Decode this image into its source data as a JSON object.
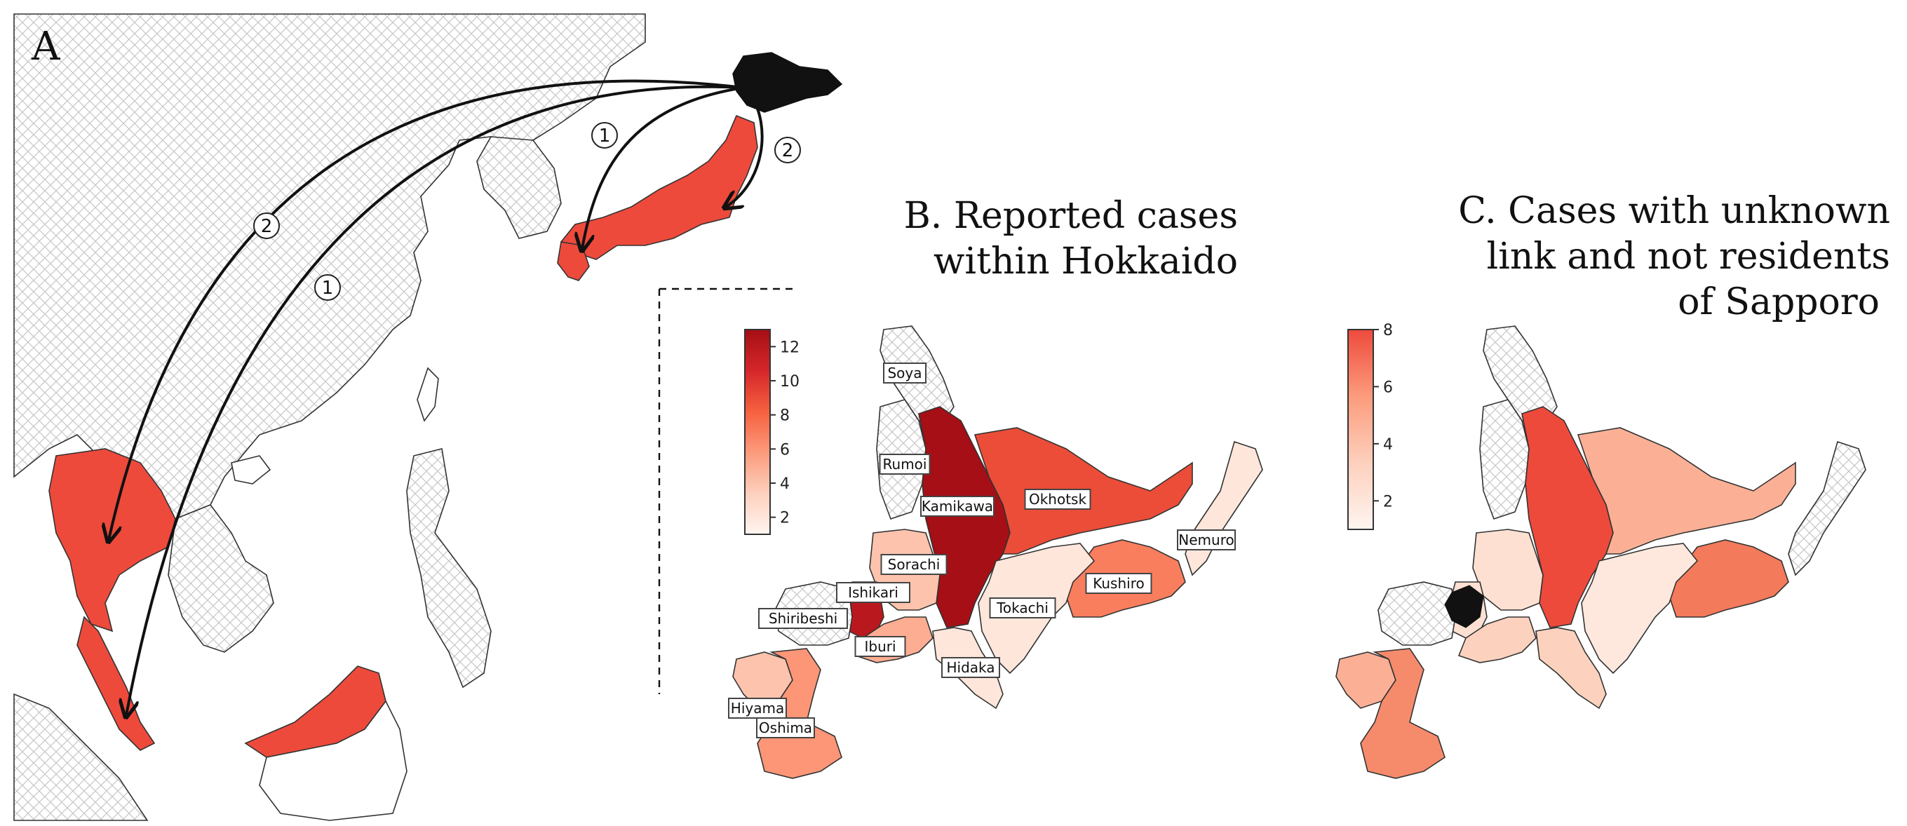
{
  "colors": {
    "accent": "#ee4a3c",
    "dark_red": "#b9161e",
    "hatch_line": "#c9c9c9",
    "sapporo_black": "#111111"
  },
  "panel_a": {
    "letter": "A",
    "route_labels": [
      {
        "id": "r1_upper",
        "text": "1"
      },
      {
        "id": "r2_upper",
        "text": "2"
      },
      {
        "id": "r2_left",
        "text": "2"
      },
      {
        "id": "r1_left",
        "text": "1"
      }
    ]
  },
  "panel_b": {
    "title_line1": "B. Reported cases",
    "title_line2": "within Hokkaido",
    "colorbar": {
      "min": 1,
      "max": 13,
      "ticks": [
        "12",
        "10",
        "8",
        "6",
        "4",
        "2"
      ],
      "tick_values": [
        12,
        10,
        8,
        6,
        4,
        2
      ],
      "low_color": "#fff5f0",
      "high_color": "#a50f15"
    },
    "regions": [
      {
        "name": "Soya",
        "cases": 1
      },
      {
        "name": "Rumoi",
        "cases": 1
      },
      {
        "name": "Kamikawa",
        "cases": 13
      },
      {
        "name": "Okhotsk",
        "cases": 9
      },
      {
        "name": "Nemuro",
        "cases": 2
      },
      {
        "name": "Sorachi",
        "cases": 4
      },
      {
        "name": "Ishikari",
        "cases": 12
      },
      {
        "name": "Shiribeshi",
        "cases": 1
      },
      {
        "name": "Kushiro",
        "cases": 7
      },
      {
        "name": "Tokachi",
        "cases": 2
      },
      {
        "name": "Iburi",
        "cases": 5
      },
      {
        "name": "Hidaka",
        "cases": 2
      },
      {
        "name": "Hiyama",
        "cases": 4
      },
      {
        "name": "Oshima",
        "cases": 6
      }
    ]
  },
  "panel_c": {
    "title_line1": "C. Cases with unknown",
    "title_line2": "link and not residents",
    "title_line3": "of Sapporo",
    "colorbar": {
      "min": 1,
      "max": 8,
      "ticks": [
        "8",
        "6",
        "4",
        "2"
      ],
      "tick_values": [
        8,
        6,
        4,
        2
      ],
      "low_color": "#fff5f0",
      "high_color": "#ee4a3c"
    }
  }
}
